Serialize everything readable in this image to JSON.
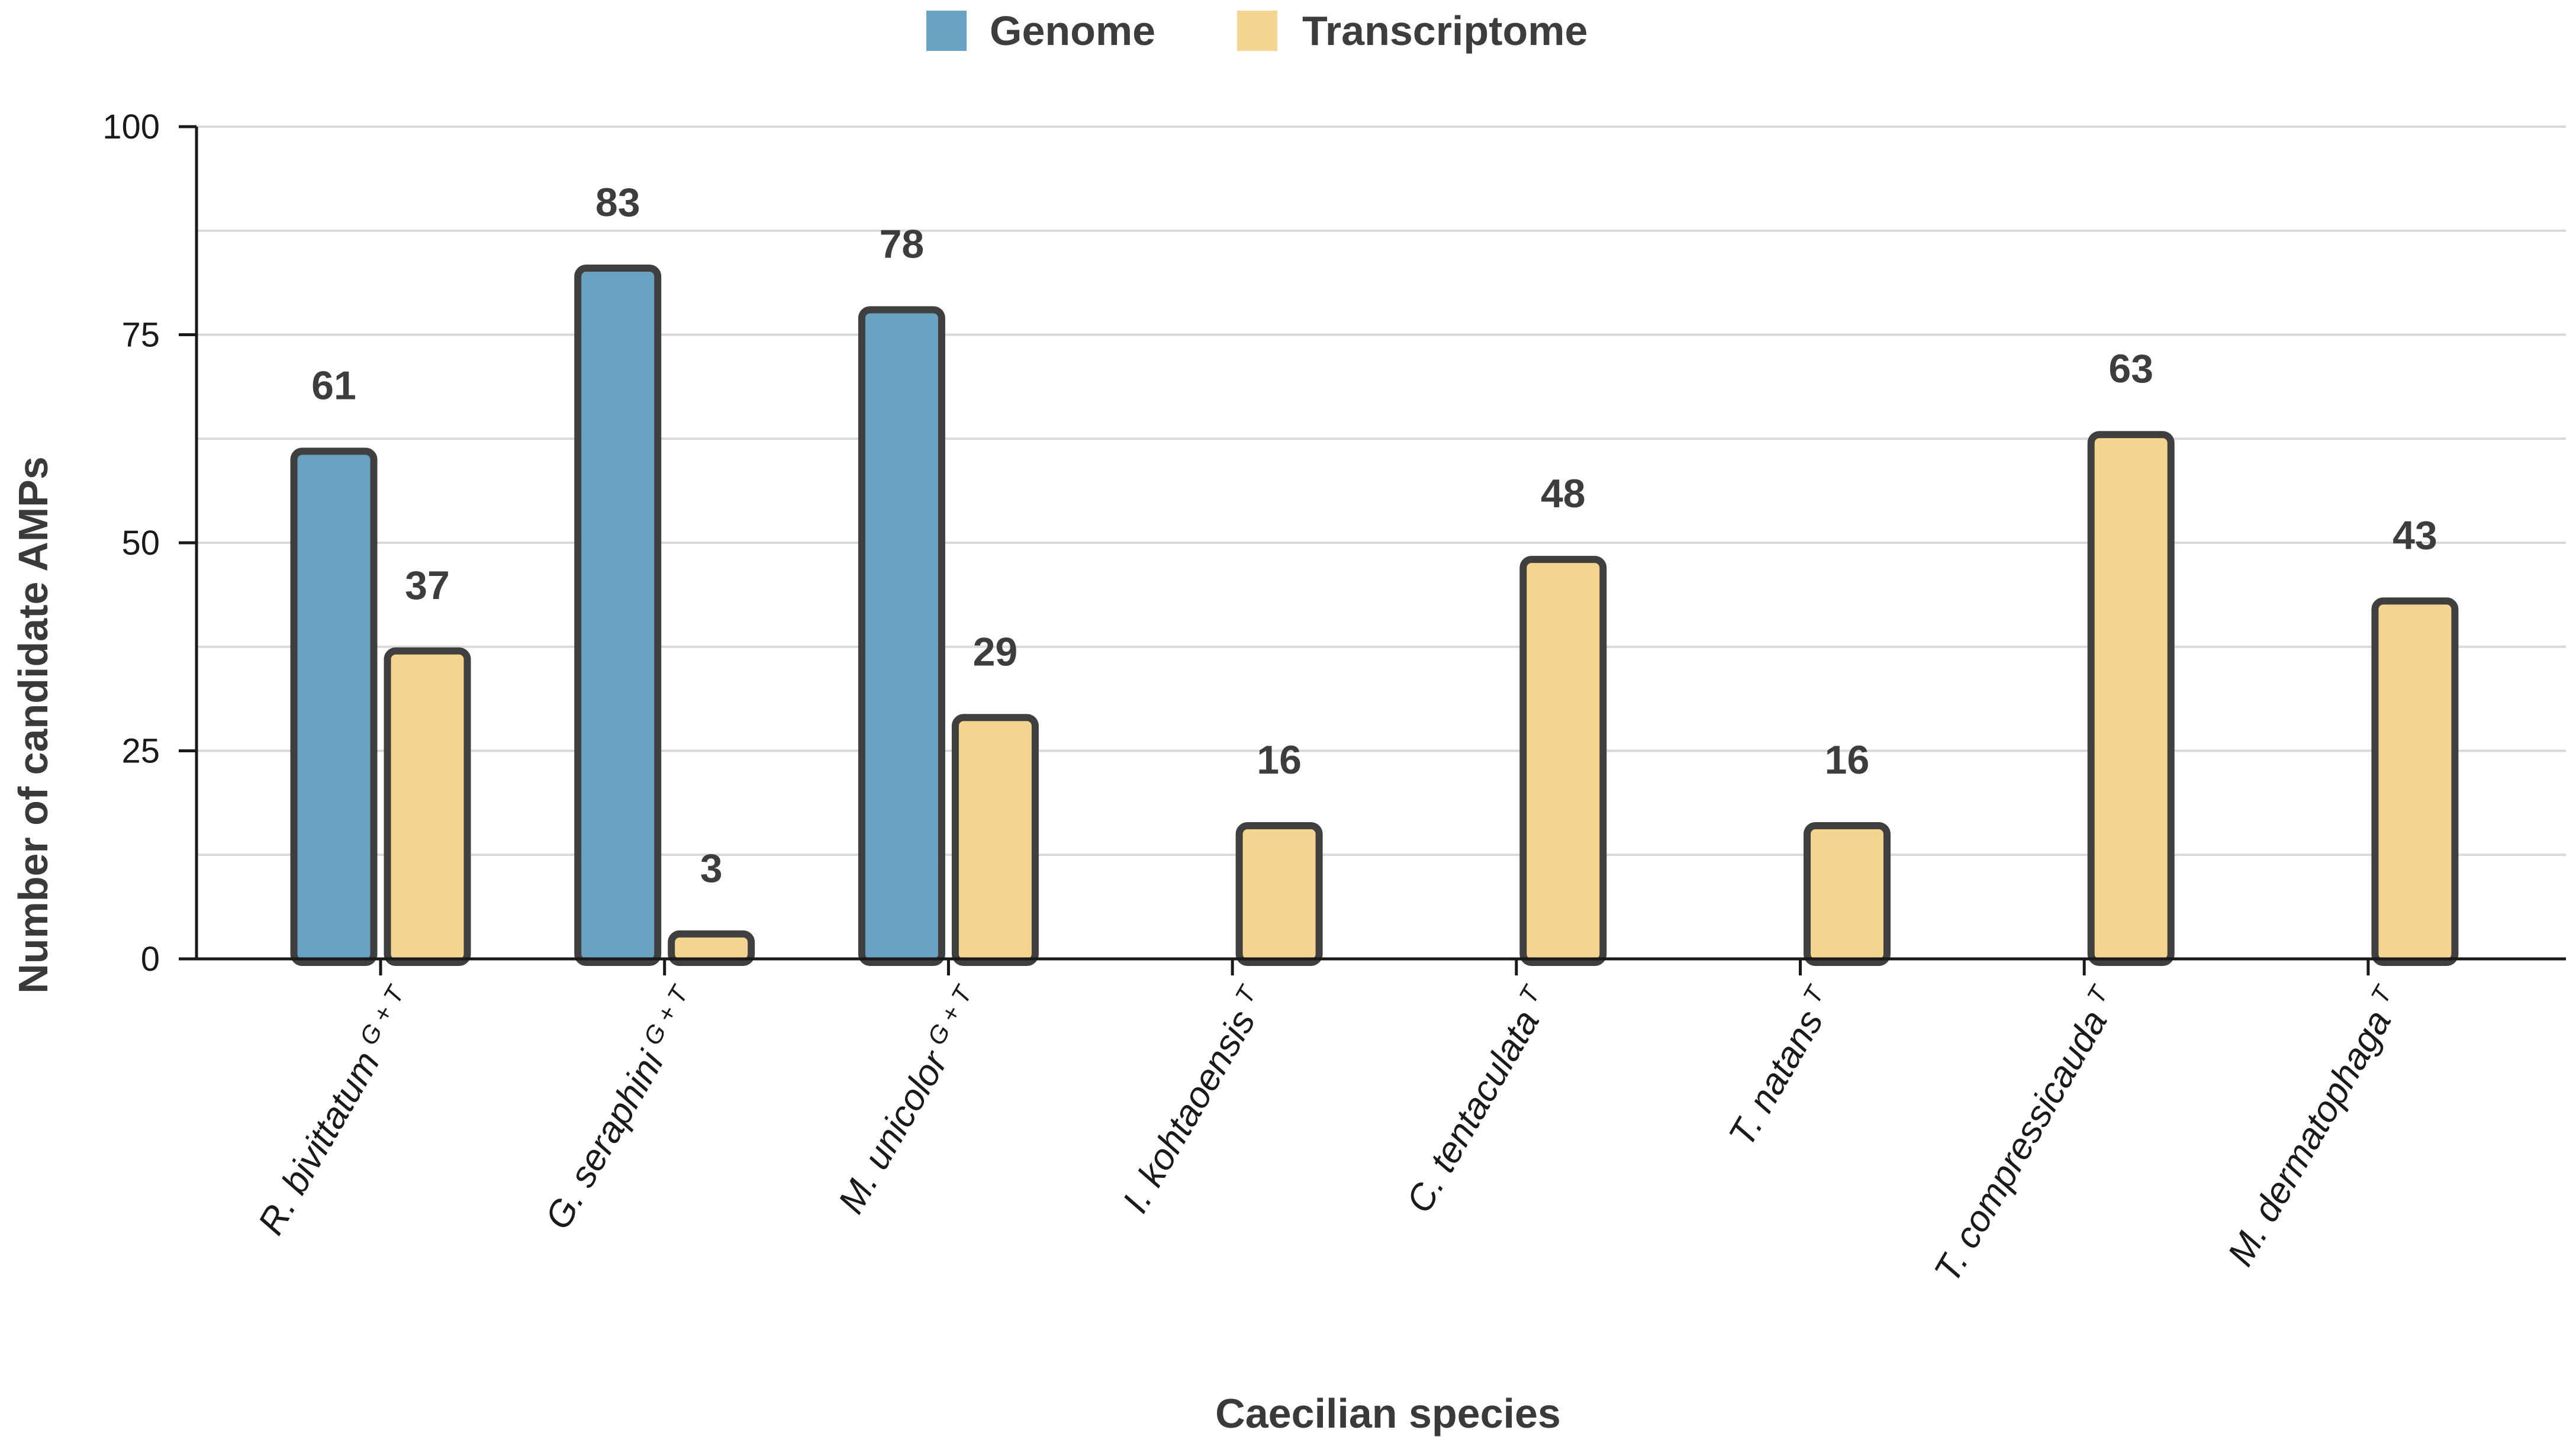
{
  "chart_data": {
    "type": "bar",
    "title": "",
    "xlabel": "Caecilian species",
    "ylabel": "Number of candidate AMPs",
    "ylim": [
      0,
      100
    ],
    "yticks": [
      0,
      25,
      50,
      75,
      100
    ],
    "grid": true,
    "legend_position": "top-center",
    "categories": [
      {
        "name": "R. bivittatum",
        "superscript": "G + T"
      },
      {
        "name": "G. seraphini",
        "superscript": "G + T"
      },
      {
        "name": "M. unicolor",
        "superscript": "G + T"
      },
      {
        "name": "I. kohtaoensis",
        "superscript": "T"
      },
      {
        "name": "C. tentaculata",
        "superscript": "T"
      },
      {
        "name": "T. natans",
        "superscript": "T"
      },
      {
        "name": "T. compressicauda",
        "superscript": "T"
      },
      {
        "name": "M. dermatophaga",
        "superscript": "T"
      }
    ],
    "series": [
      {
        "name": "Genome",
        "color": "#6aa3c2",
        "values": [
          61,
          83,
          78,
          null,
          null,
          null,
          null,
          null
        ]
      },
      {
        "name": "Transcriptome",
        "color": "#f5d491",
        "values": [
          37,
          3,
          29,
          16,
          48,
          16,
          63,
          43
        ]
      }
    ]
  }
}
